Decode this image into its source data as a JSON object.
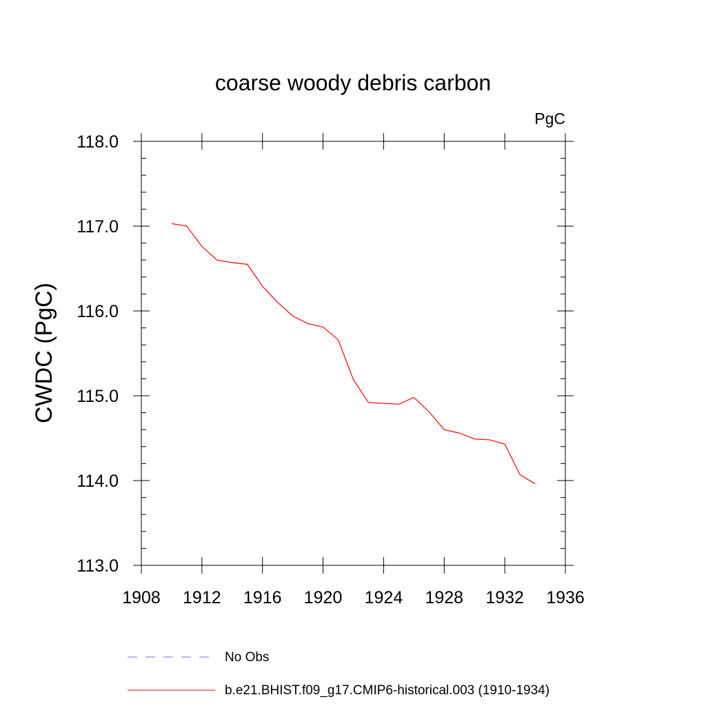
{
  "chart_data": {
    "type": "line",
    "title": "coarse woody debris carbon",
    "units_label": "PgC",
    "xlabel": "",
    "ylabel": "CWDC  (PgC)",
    "xlim": [
      1908,
      1936
    ],
    "ylim": [
      113.0,
      118.0
    ],
    "xticks": [
      "1908",
      "1912",
      "1916",
      "1920",
      "1924",
      "1928",
      "1932",
      "1936"
    ],
    "yticks": [
      "113.0",
      "114.0",
      "115.0",
      "116.0",
      "117.0",
      "118.0"
    ],
    "grid": false,
    "legend_position": "bottom",
    "series": [
      {
        "name": "No Obs",
        "color": "#7b6fd0",
        "dash": "dashed",
        "x": [],
        "y": []
      },
      {
        "name": "b.e21.BHIST.f09_g17.CMIP6-historical.003 (1910-1934)",
        "color": "#ff0000",
        "dash": "solid",
        "x": [
          1910,
          1911,
          1912,
          1913,
          1914,
          1915,
          1916,
          1917,
          1918,
          1919,
          1920,
          1921,
          1922,
          1923,
          1924,
          1925,
          1926,
          1927,
          1928,
          1929,
          1930,
          1931,
          1932,
          1933,
          1934
        ],
        "y": [
          117.03,
          117.0,
          116.76,
          116.6,
          116.57,
          116.55,
          116.29,
          116.1,
          115.94,
          115.85,
          115.81,
          115.66,
          115.19,
          114.92,
          114.91,
          114.9,
          114.98,
          114.81,
          114.6,
          114.56,
          114.49,
          114.48,
          114.43,
          114.07,
          113.96
        ]
      }
    ]
  }
}
